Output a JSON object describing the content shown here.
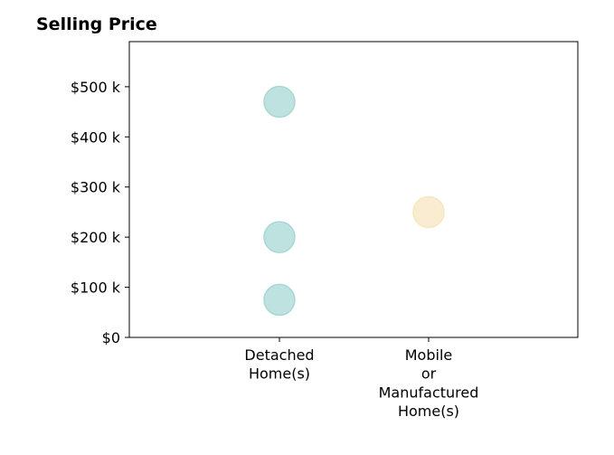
{
  "chart_data": {
    "type": "scatter",
    "title": "Selling Price",
    "xlabel": "",
    "ylabel": "",
    "categories": [
      [
        "Detached",
        "Home(s)"
      ],
      [
        "Mobile",
        "or",
        "Manufactured",
        "Home(s)"
      ]
    ],
    "ylim": [
      0,
      590000
    ],
    "yticks": [
      0,
      100000,
      200000,
      300000,
      400000,
      500000
    ],
    "ytick_labels": [
      "$0",
      "$100 k",
      "$200 k",
      "$300 k",
      "$400 k",
      "$500 k"
    ],
    "grid": false,
    "series": [
      {
        "points": [
          {
            "category": 0,
            "y": 470000
          },
          {
            "category": 0,
            "y": 200000
          },
          {
            "category": 0,
            "y": 75000
          }
        ],
        "color": "#a8d8d4"
      },
      {
        "points": [
          {
            "category": 1,
            "y": 250000
          }
        ],
        "color": "#f8e6c0"
      }
    ]
  }
}
